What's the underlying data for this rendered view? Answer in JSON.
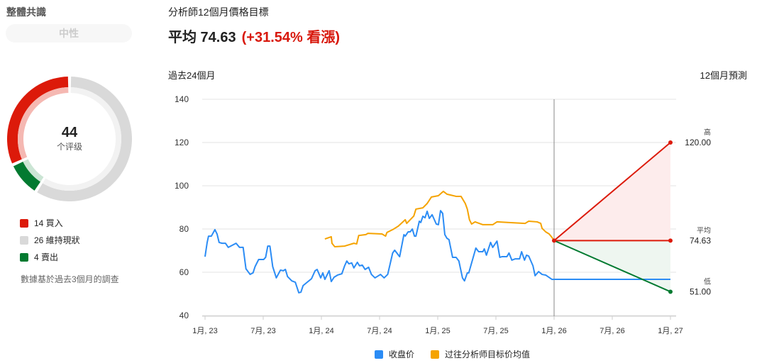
{
  "consensus": {
    "title": "整體共識",
    "rating": "中性",
    "total": "44",
    "total_label": "个评级",
    "legend": [
      {
        "count": "14",
        "label": "買入",
        "text": "14 買入",
        "color": "#dc1a0a",
        "light": "#f5b8b2",
        "value": 14
      },
      {
        "count": "26",
        "label": "維持現狀",
        "text": "26 維持現狀",
        "color": "#d9d9d9",
        "light": "#f2f2f2",
        "value": 26
      },
      {
        "count": "4",
        "label": "賣出",
        "text": "4 賣出",
        "color": "#027a30",
        "light": "#cbe5d4",
        "value": 4
      }
    ],
    "note": "數據基於過去3個月的調查"
  },
  "target": {
    "title": "分析師12個月價格目標",
    "avg_text": "平均 74.63",
    "change_text": "(+31.54% 看漲)",
    "past_label": "過去24個月",
    "forecast_label": "12個月預測"
  },
  "chart_data": {
    "type": "line",
    "ylim": [
      40,
      140
    ],
    "yticks": [
      40,
      60,
      80,
      100,
      120,
      140
    ],
    "xticks": [
      {
        "m": 0,
        "label": "1月, 23"
      },
      {
        "m": 6,
        "label": "7月, 23"
      },
      {
        "m": 12,
        "label": "1月, 24"
      },
      {
        "m": 18,
        "label": "7月, 24"
      },
      {
        "m": 24,
        "label": "1月, 25"
      },
      {
        "m": 30,
        "label": "7月, 25"
      },
      {
        "m": 36,
        "label": "1月, 26"
      },
      {
        "m": 42,
        "label": "7月, 26"
      },
      {
        "m": 48,
        "label": "1月, 27"
      }
    ],
    "xlim": [
      0,
      48
    ],
    "grid": true,
    "legend_position": "bottom",
    "series": [
      {
        "name": "收盘价",
        "color": "#2b8cf5",
        "points": [
          [
            0,
            67.2
          ],
          [
            0.22,
            73.8
          ],
          [
            0.36,
            76.7
          ],
          [
            0.65,
            76.7
          ],
          [
            1.02,
            79.7
          ],
          [
            1.24,
            77.7
          ],
          [
            1.45,
            73.8
          ],
          [
            1.75,
            73.4
          ],
          [
            2.11,
            73.4
          ],
          [
            2.4,
            71.5
          ],
          [
            3.2,
            73.4
          ],
          [
            3.56,
            71.5
          ],
          [
            3.93,
            71.5
          ],
          [
            4.22,
            61.6
          ],
          [
            4.65,
            59
          ],
          [
            4.95,
            59.7
          ],
          [
            5.16,
            62.6
          ],
          [
            5.53,
            65.9
          ],
          [
            6.04,
            65.9
          ],
          [
            6.25,
            66.9
          ],
          [
            6.47,
            72.1
          ],
          [
            6.69,
            72.1
          ],
          [
            6.98,
            62.6
          ],
          [
            7.35,
            57.4
          ],
          [
            7.78,
            61
          ],
          [
            8.07,
            60.7
          ],
          [
            8.29,
            61.3
          ],
          [
            8.51,
            58
          ],
          [
            8.95,
            56
          ],
          [
            9.31,
            55.4
          ],
          [
            9.67,
            50.5
          ],
          [
            9.89,
            50.8
          ],
          [
            10.11,
            53.8
          ],
          [
            10.62,
            55.7
          ],
          [
            10.98,
            57
          ],
          [
            11.35,
            60.7
          ],
          [
            11.56,
            61.3
          ],
          [
            11.93,
            57.4
          ],
          [
            12.15,
            59.7
          ],
          [
            12.36,
            56.7
          ],
          [
            12.8,
            60.7
          ],
          [
            13.02,
            55.7
          ],
          [
            13.31,
            57.7
          ],
          [
            13.67,
            58.7
          ],
          [
            14.11,
            59.3
          ],
          [
            14.4,
            63
          ],
          [
            14.62,
            65.2
          ],
          [
            14.84,
            63.9
          ],
          [
            15.13,
            64.3
          ],
          [
            15.35,
            62
          ],
          [
            15.71,
            64.6
          ],
          [
            15.93,
            63
          ],
          [
            16.22,
            63.3
          ],
          [
            16.51,
            61.3
          ],
          [
            16.87,
            62.3
          ],
          [
            17.16,
            59
          ],
          [
            17.53,
            57.4
          ],
          [
            18.1,
            59
          ],
          [
            18.47,
            57.4
          ],
          [
            18.84,
            59
          ],
          [
            19.35,
            68.9
          ],
          [
            19.56,
            70.2
          ],
          [
            20.07,
            67.2
          ],
          [
            20.51,
            77.4
          ],
          [
            20.65,
            76.7
          ],
          [
            20.95,
            78.7
          ],
          [
            21.16,
            78.7
          ],
          [
            21.38,
            80
          ],
          [
            21.6,
            76.7
          ],
          [
            21.75,
            76.7
          ],
          [
            22.1,
            83.6
          ],
          [
            22.25,
            83
          ],
          [
            22.47,
            85.9
          ],
          [
            22.69,
            85.2
          ],
          [
            22.91,
            88.2
          ],
          [
            23.13,
            84.9
          ],
          [
            23.42,
            86.6
          ],
          [
            23.56,
            85.2
          ],
          [
            23.85,
            82.3
          ],
          [
            24.07,
            82
          ],
          [
            24.29,
            88.5
          ],
          [
            24.51,
            87.2
          ],
          [
            24.73,
            77.4
          ],
          [
            24.95,
            75.7
          ],
          [
            25.16,
            75.1
          ],
          [
            25.53,
            66.9
          ],
          [
            25.89,
            66.9
          ],
          [
            26.18,
            65.2
          ],
          [
            26.55,
            57.4
          ],
          [
            26.76,
            56
          ],
          [
            27.05,
            59.7
          ],
          [
            27.2,
            59.7
          ],
          [
            27.93,
            71.2
          ],
          [
            28.22,
            69.5
          ],
          [
            28.65,
            69.5
          ],
          [
            28.8,
            70.8
          ],
          [
            29.02,
            67.9
          ],
          [
            29.45,
            73.8
          ],
          [
            29.67,
            71.5
          ],
          [
            30.11,
            74.4
          ],
          [
            30.4,
            66.9
          ],
          [
            30.62,
            67.2
          ],
          [
            31.13,
            67.2
          ],
          [
            31.35,
            68.9
          ],
          [
            31.64,
            65.6
          ],
          [
            32,
            66.2
          ],
          [
            32.44,
            66.2
          ],
          [
            32.65,
            69.5
          ],
          [
            32.95,
            65.6
          ],
          [
            33.16,
            67.9
          ],
          [
            33.38,
            67.5
          ],
          [
            33.82,
            63
          ],
          [
            34.04,
            58.4
          ],
          [
            34.4,
            60.3
          ],
          [
            34.76,
            59
          ],
          [
            35.13,
            58.7
          ],
          [
            35.78,
            56.7
          ],
          [
            36,
            56.74
          ],
          [
            48,
            56.74
          ]
        ]
      },
      {
        "name": "过往分析师目标价均值",
        "color": "#f5a300",
        "points": [
          [
            12.36,
            75.4
          ],
          [
            13.02,
            76.4
          ],
          [
            13.09,
            73.4
          ],
          [
            13.38,
            71.8
          ],
          [
            14.4,
            72.1
          ],
          [
            15.35,
            73.4
          ],
          [
            15.64,
            73.1
          ],
          [
            15.85,
            77
          ],
          [
            16.58,
            77.4
          ],
          [
            16.8,
            78
          ],
          [
            18.25,
            77.7
          ],
          [
            18.62,
            76.7
          ],
          [
            18.76,
            78.4
          ],
          [
            19.35,
            79.7
          ],
          [
            19.93,
            81.3
          ],
          [
            20.65,
            84.3
          ],
          [
            20.8,
            82.6
          ],
          [
            21.53,
            86
          ],
          [
            21.75,
            89.2
          ],
          [
            22.47,
            89.8
          ],
          [
            22.91,
            91.8
          ],
          [
            23.35,
            94.8
          ],
          [
            24.07,
            95.4
          ],
          [
            24.58,
            97.4
          ],
          [
            24.95,
            96.1
          ],
          [
            25.89,
            95.1
          ],
          [
            26.4,
            95.1
          ],
          [
            26.84,
            91.8
          ],
          [
            27.05,
            89.2
          ],
          [
            27.27,
            84.3
          ],
          [
            27.49,
            82.3
          ],
          [
            27.85,
            83.3
          ],
          [
            28.65,
            82
          ],
          [
            29.67,
            82
          ],
          [
            30.11,
            83.3
          ],
          [
            31.35,
            83
          ],
          [
            33.02,
            82.6
          ],
          [
            33.38,
            83.6
          ],
          [
            34.25,
            83.3
          ],
          [
            34.62,
            82.6
          ],
          [
            34.76,
            80.3
          ],
          [
            35.13,
            78.7
          ],
          [
            35.49,
            77.7
          ],
          [
            35.78,
            76.1
          ],
          [
            36,
            74.63
          ]
        ]
      }
    ],
    "forecast": {
      "start": [
        36,
        74.63
      ],
      "end_m": 48,
      "high": {
        "label": "高",
        "value": 120,
        "text": "120.00",
        "color": "#dc1a0a"
      },
      "avg": {
        "label": "平均",
        "value": 74.63,
        "text": "74.63",
        "color": "#dc1a0a"
      },
      "low": {
        "label": "低",
        "value": 51,
        "text": "51.00",
        "color": "#027a30"
      },
      "high_fill": "#fdecec",
      "low_fill": "#eef6f0"
    }
  }
}
